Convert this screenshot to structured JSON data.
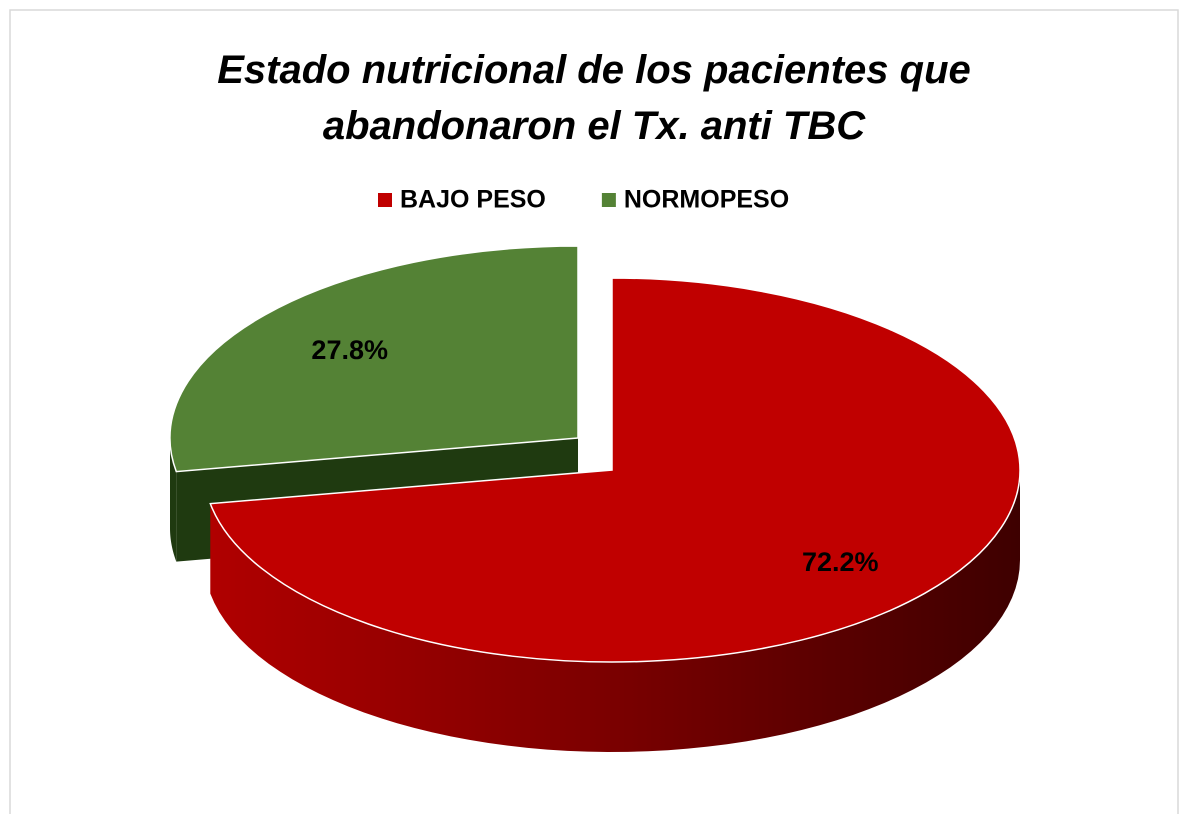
{
  "chart_data": {
    "type": "pie3d",
    "title": "Estado nutricional de los pacientes que abandonaron el Tx. anti TBC",
    "categories": [
      "BAJO PESO",
      "NORMOPESO"
    ],
    "values": [
      72.2,
      27.8
    ],
    "value_labels": [
      "72.2%",
      "27.8%"
    ],
    "colors": [
      "#c00000",
      "#548235"
    ],
    "legend": "top"
  }
}
